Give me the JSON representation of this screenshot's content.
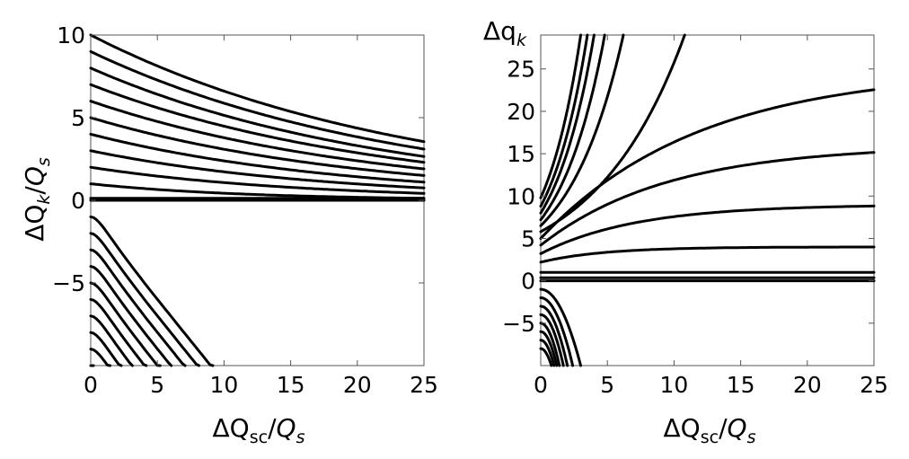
{
  "chart_data": [
    {
      "type": "line",
      "title": "",
      "xlabel": "ΔQsc/Qs",
      "ylabel": "ΔQk/Qs",
      "xlim": [
        0,
        25
      ],
      "ylim": [
        -10,
        10
      ],
      "x_ticks": [
        "0",
        "5",
        "10",
        "15",
        "20",
        "25"
      ],
      "y_ticks": [
        "−5",
        "0",
        "5",
        "10"
      ],
      "y_tick_values": [
        -5,
        0,
        5,
        10
      ],
      "grid": false,
      "upper_branches": {
        "x_range": [
          0,
          25
        ],
        "start_values": [
          1,
          2,
          3,
          4,
          5,
          6,
          7,
          8,
          9,
          10
        ],
        "value_at_x25": [
          0.12,
          0.42,
          0.75,
          1.1,
          1.5,
          1.9,
          2.3,
          2.65,
          3.1,
          3.55
        ]
      },
      "zero_lines": [
        0.0,
        0.12
      ],
      "lower_branches": {
        "start_values": [
          -1,
          -2,
          -3,
          -4,
          -5,
          -6,
          -7,
          -8,
          -9,
          -10
        ],
        "slope": -1.0
      }
    },
    {
      "type": "line",
      "title": "",
      "xlabel": "ΔQsc/Qs",
      "ylabel": "Δqk",
      "xlim": [
        0,
        25
      ],
      "ylim": [
        -10,
        29
      ],
      "x_ticks": [
        "0",
        "5",
        "10",
        "15",
        "20",
        "25"
      ],
      "y_ticks": [
        "−5",
        "0",
        "5",
        "10",
        "15",
        "20",
        "25"
      ],
      "y_tick_values": [
        -5,
        0,
        5,
        10,
        15,
        20,
        25
      ],
      "grid": false,
      "saturating_branches": [
        {
          "start": 1.0,
          "asymptote": 1.0
        },
        {
          "start": 2.2,
          "asymptote": 4.0
        },
        {
          "start": 3.2,
          "asymptote": 9.0
        },
        {
          "start": 4.2,
          "asymptote": 16.0
        },
        {
          "start": 5.0,
          "asymptote": 25.0
        }
      ],
      "steep_branches_exit_x": [
        10.8,
        6.2,
        4.8,
        4.0,
        3.5,
        3.0
      ],
      "steep_branches_start": [
        5.8,
        6.5,
        7.2,
        8.0,
        8.8,
        9.8
      ],
      "zero_lines": [
        0.0,
        0.35
      ],
      "lower_branches": {
        "start_values": [
          -1,
          -2,
          -3,
          -4,
          -5,
          -6,
          -7,
          -8
        ],
        "exit_x": [
          3.0,
          2.4,
          2.0,
          1.7,
          1.4,
          1.2,
          1.0,
          0.8
        ]
      }
    }
  ]
}
